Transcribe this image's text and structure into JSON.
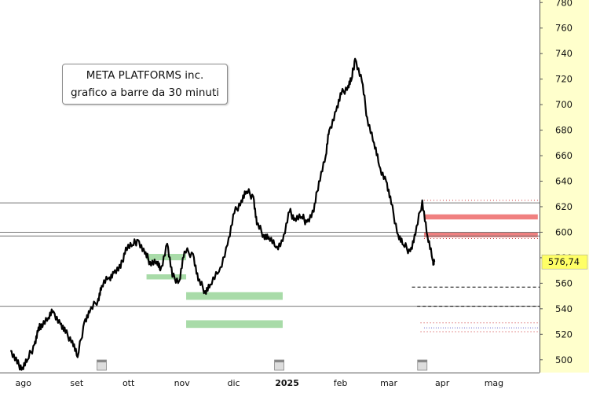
{
  "chart_data": {
    "type": "line",
    "title": "META PLATFORMS inc.",
    "subtitle": "grafico a barre da 30 minuti",
    "xlabel": "",
    "ylabel": "",
    "x_tick_labels": [
      "ago",
      "set",
      "ott",
      "nov",
      "dic",
      "2025",
      "feb",
      "mar",
      "apr",
      "mag"
    ],
    "y_ticks": [
      500,
      520,
      540,
      560,
      580,
      600,
      620,
      640,
      660,
      680,
      700,
      720,
      740,
      760,
      780
    ],
    "ylim": [
      490,
      782
    ],
    "last_price": 576.74,
    "last_price_label": "576,74",
    "grid": false,
    "colors": {
      "price": "#000000",
      "support_zone": "#a8dba8",
      "resistance_zone": "#f08080",
      "axis_bg": "#ffffcc",
      "price_label_bg": "#ffff66"
    },
    "series": [
      {
        "values": [
          {
            "x": "2024-07-29",
            "y": 507
          },
          {
            "x": "2024-08-02",
            "y": 497
          },
          {
            "x": "2024-08-05",
            "y": 494
          },
          {
            "x": "2024-08-08",
            "y": 500
          },
          {
            "x": "2024-08-12",
            "y": 512
          },
          {
            "x": "2024-08-14",
            "y": 522
          },
          {
            "x": "2024-08-16",
            "y": 528
          },
          {
            "x": "2024-08-20",
            "y": 533
          },
          {
            "x": "2024-08-23",
            "y": 538
          },
          {
            "x": "2024-08-27",
            "y": 528
          },
          {
            "x": "2024-08-30",
            "y": 521
          },
          {
            "x": "2024-09-03",
            "y": 515
          },
          {
            "x": "2024-09-06",
            "y": 502
          },
          {
            "x": "2024-09-10",
            "y": 530
          },
          {
            "x": "2024-09-13",
            "y": 537
          },
          {
            "x": "2024-09-18",
            "y": 548
          },
          {
            "x": "2024-09-20",
            "y": 558
          },
          {
            "x": "2024-09-24",
            "y": 564
          },
          {
            "x": "2024-09-27",
            "y": 568
          },
          {
            "x": "2024-10-01",
            "y": 572
          },
          {
            "x": "2024-10-04",
            "y": 588
          },
          {
            "x": "2024-10-08",
            "y": 590
          },
          {
            "x": "2024-10-11",
            "y": 594
          },
          {
            "x": "2024-10-15",
            "y": 583
          },
          {
            "x": "2024-10-18",
            "y": 577
          },
          {
            "x": "2024-10-22",
            "y": 577
          },
          {
            "x": "2024-10-24",
            "y": 570
          },
          {
            "x": "2024-10-28",
            "y": 591
          },
          {
            "x": "2024-10-31",
            "y": 565
          },
          {
            "x": "2024-11-04",
            "y": 562
          },
          {
            "x": "2024-11-07",
            "y": 585
          },
          {
            "x": "2024-11-12",
            "y": 583
          },
          {
            "x": "2024-11-15",
            "y": 562
          },
          {
            "x": "2024-11-19",
            "y": 554
          },
          {
            "x": "2024-11-22",
            "y": 559
          },
          {
            "x": "2024-11-27",
            "y": 569
          },
          {
            "x": "2024-12-02",
            "y": 590
          },
          {
            "x": "2024-12-06",
            "y": 615
          },
          {
            "x": "2024-12-10",
            "y": 625
          },
          {
            "x": "2024-12-13",
            "y": 632
          },
          {
            "x": "2024-12-17",
            "y": 628
          },
          {
            "x": "2024-12-19",
            "y": 606
          },
          {
            "x": "2024-12-23",
            "y": 598
          },
          {
            "x": "2024-12-26",
            "y": 596
          },
          {
            "x": "2024-12-30",
            "y": 588
          },
          {
            "x": "2025-01-03",
            "y": 593
          },
          {
            "x": "2025-01-07",
            "y": 616
          },
          {
            "x": "2025-01-10",
            "y": 611
          },
          {
            "x": "2025-01-14",
            "y": 612
          },
          {
            "x": "2025-01-17",
            "y": 608
          },
          {
            "x": "2025-01-21",
            "y": 616
          },
          {
            "x": "2025-01-24",
            "y": 640
          },
          {
            "x": "2025-01-28",
            "y": 660
          },
          {
            "x": "2025-01-30",
            "y": 680
          },
          {
            "x": "2025-02-03",
            "y": 695
          },
          {
            "x": "2025-02-06",
            "y": 708
          },
          {
            "x": "2025-02-10",
            "y": 715
          },
          {
            "x": "2025-02-12",
            "y": 720
          },
          {
            "x": "2025-02-14",
            "y": 736
          },
          {
            "x": "2025-02-18",
            "y": 718
          },
          {
            "x": "2025-02-21",
            "y": 690
          },
          {
            "x": "2025-02-25",
            "y": 670
          },
          {
            "x": "2025-02-28",
            "y": 652
          },
          {
            "x": "2025-03-04",
            "y": 640
          },
          {
            "x": "2025-03-07",
            "y": 622
          },
          {
            "x": "2025-03-11",
            "y": 598
          },
          {
            "x": "2025-03-14",
            "y": 590
          },
          {
            "x": "2025-03-18",
            "y": 585
          },
          {
            "x": "2025-03-21",
            "y": 598
          },
          {
            "x": "2025-03-25",
            "y": 625
          },
          {
            "x": "2025-03-28",
            "y": 597
          },
          {
            "x": "2025-03-31",
            "y": 578
          },
          {
            "x": "2025-04-01",
            "y": 576.74
          }
        ]
      }
    ],
    "levels": [
      {
        "y": 623,
        "style": "solid-grey"
      },
      {
        "y": 600,
        "style": "solid-grey"
      },
      {
        "y": 597,
        "style": "solid-grey"
      },
      {
        "y": 542,
        "style": "solid-grey"
      },
      {
        "y": 625,
        "style": "dotted-red",
        "from": "2025-03-26"
      },
      {
        "y": 595,
        "style": "dotted-red",
        "from": "2025-03-26"
      },
      {
        "y": 557,
        "style": "dashed-black",
        "from": "2025-03-19"
      },
      {
        "y": 542,
        "style": "dashed-black",
        "from": "2025-03-22"
      },
      {
        "y": 529,
        "style": "dotted-red",
        "from": "2025-03-24"
      },
      {
        "y": 522,
        "style": "dotted-red",
        "from": "2025-03-24"
      },
      {
        "y": 525,
        "style": "dotted-blue",
        "from": "2025-03-26"
      }
    ],
    "zones": [
      {
        "kind": "resistance",
        "from": "2025-03-26",
        "to": "2025-05-31",
        "y1": 610,
        "y2": 614
      },
      {
        "kind": "resistance",
        "from": "2025-03-26",
        "to": "2025-05-31",
        "y1": 596,
        "y2": 600
      },
      {
        "kind": "support",
        "from": "2024-10-16",
        "to": "2024-11-08",
        "y1": 578,
        "y2": 583
      },
      {
        "kind": "support",
        "from": "2024-10-16",
        "to": "2024-11-08",
        "y1": 563,
        "y2": 567
      },
      {
        "kind": "support",
        "from": "2024-11-08",
        "to": "2025-01-03",
        "y1": 547,
        "y2": 553
      },
      {
        "kind": "support",
        "from": "2024-11-08",
        "to": "2025-01-03",
        "y1": 525,
        "y2": 531
      }
    ]
  }
}
